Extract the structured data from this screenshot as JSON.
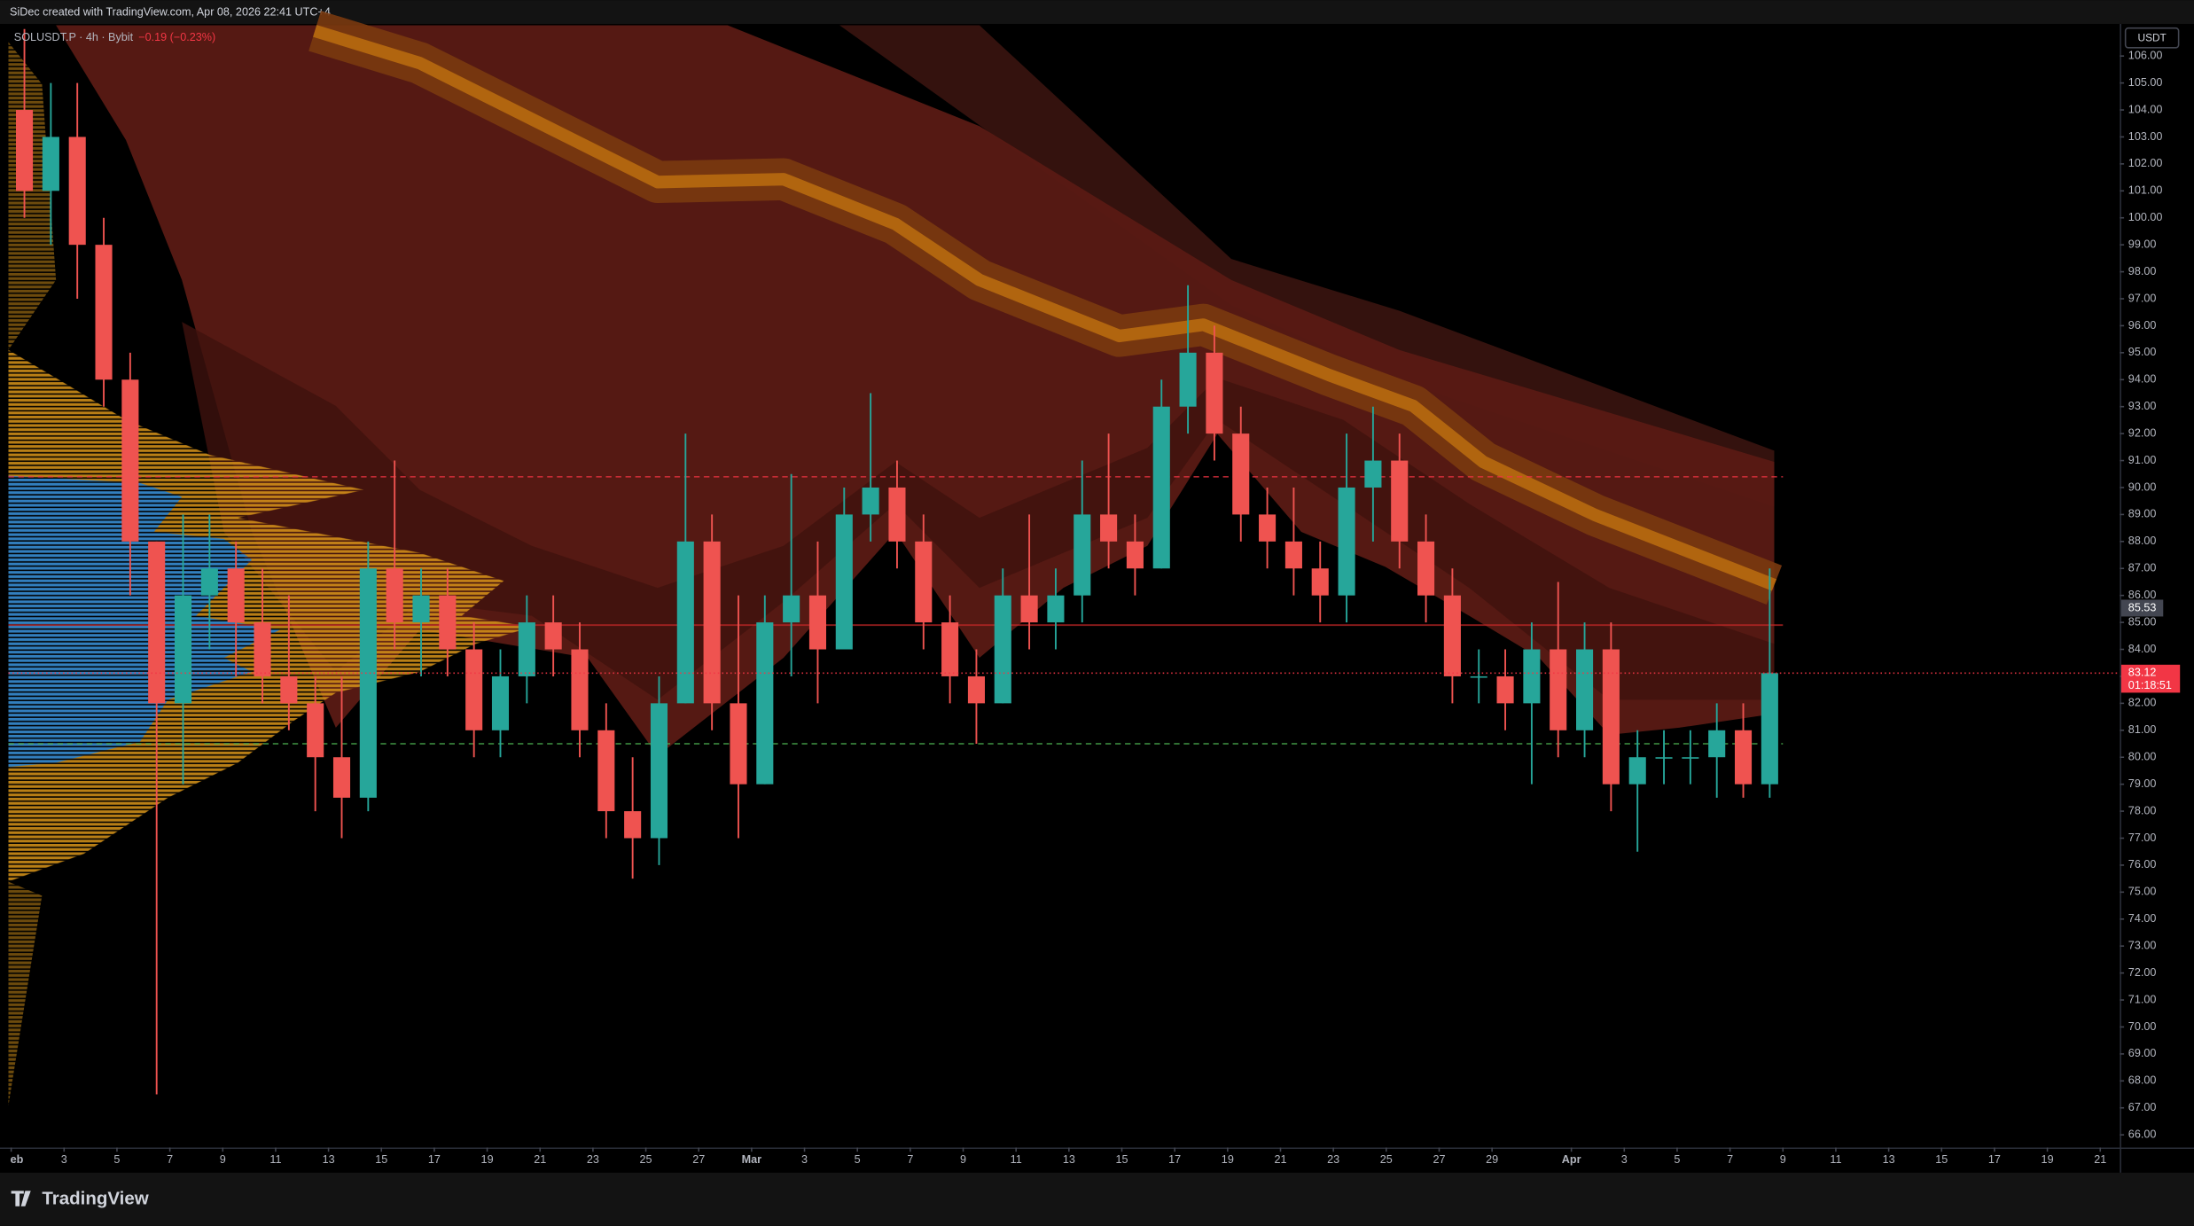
{
  "header": {
    "credit": "SiDec created with TradingView.com, Apr 08, 2026 22:41 UTC+4",
    "symbol": "SOLUSDT.P · 4h · Bybit",
    "change": "−0.19 (−0.23%)",
    "currency": "USDT",
    "brand": "TradingView"
  },
  "chart_data": {
    "type": "candlestick",
    "x": [
      "02-01",
      "02-02",
      "02-03",
      "02-04",
      "02-05",
      "02-06",
      "02-07",
      "02-08",
      "02-09",
      "02-10",
      "02-11",
      "02-12",
      "02-13",
      "02-14",
      "02-15",
      "02-16",
      "02-17",
      "02-18",
      "02-19",
      "02-20",
      "02-21",
      "02-22",
      "02-23",
      "02-24",
      "02-25",
      "02-26",
      "02-27",
      "02-28",
      "03-01",
      "03-02",
      "03-03",
      "03-04",
      "03-05",
      "03-06",
      "03-07",
      "03-08",
      "03-09",
      "03-10",
      "03-11",
      "03-12",
      "03-13",
      "03-14",
      "03-15",
      "03-16",
      "03-17",
      "03-18",
      "03-19",
      "03-20",
      "03-21",
      "03-22",
      "03-23",
      "03-24",
      "03-25",
      "03-26",
      "03-27",
      "03-28",
      "03-29",
      "03-30",
      "03-31",
      "04-01",
      "04-02",
      "04-03",
      "04-04",
      "04-05",
      "04-06",
      "04-07",
      "04-08"
    ],
    "open": [
      104,
      101,
      103,
      99,
      94,
      88,
      82,
      86,
      87,
      85,
      83,
      82,
      80,
      78.5,
      87,
      85,
      86,
      84,
      81,
      83,
      85,
      84,
      81,
      78,
      77,
      82,
      88,
      82,
      79,
      85,
      86,
      84,
      89,
      90,
      88,
      85,
      83,
      82,
      86,
      85,
      86,
      89,
      88,
      87,
      93,
      95,
      92,
      89,
      88,
      87,
      86,
      90,
      91,
      88,
      86,
      83,
      83,
      82,
      84,
      81,
      84,
      79,
      80,
      80,
      80,
      81,
      79
    ],
    "high": [
      107,
      105,
      105,
      100,
      95,
      88,
      89,
      89,
      88,
      87,
      86,
      83,
      83,
      88,
      91,
      87,
      87,
      85,
      84,
      86,
      86,
      85,
      82,
      80,
      83,
      92,
      89,
      86,
      86,
      90.5,
      88,
      90,
      93.5,
      91,
      89,
      86,
      84,
      87,
      89,
      87,
      91,
      92,
      89,
      94,
      97.5,
      96,
      93,
      90,
      90,
      88,
      92,
      93,
      92,
      89,
      87,
      84,
      84,
      85,
      86.5,
      85,
      85,
      81,
      81,
      81,
      82,
      82,
      87
    ],
    "low": [
      100,
      99,
      97,
      93,
      86,
      67.5,
      79,
      84,
      83,
      82,
      81,
      78,
      77,
      78,
      84,
      83,
      83,
      80,
      80,
      82,
      83,
      80,
      77,
      75.5,
      76,
      82,
      81,
      77,
      79,
      83,
      82,
      84,
      88,
      87,
      84,
      82,
      80.5,
      82,
      84,
      84,
      85,
      87,
      86,
      87,
      92,
      91,
      88,
      87,
      86,
      85,
      85,
      88,
      87,
      85,
      82,
      82,
      81,
      79,
      80,
      80,
      78,
      76.5,
      79,
      79,
      78.5,
      78.5,
      78.5
    ],
    "close": [
      101,
      103,
      99,
      94,
      88,
      82,
      86,
      87,
      85,
      83,
      82,
      80,
      78.5,
      87,
      85,
      86,
      84,
      81,
      83,
      85,
      84,
      81,
      78,
      77,
      82,
      88,
      82,
      79,
      85,
      86,
      84,
      89,
      90,
      88,
      85,
      83,
      82,
      86,
      85,
      86,
      89,
      88,
      87,
      93,
      95,
      92,
      89,
      88,
      87,
      86,
      90,
      91,
      88,
      86,
      83,
      83,
      82,
      84,
      81,
      84,
      79,
      80,
      80,
      80,
      81,
      79,
      83.12
    ],
    "up_color": "#26a69a",
    "down_color": "#ef5350",
    "xlim": [
      "02-01",
      "04-21"
    ],
    "xticks": [
      {
        "value": "02-01",
        "label": "eb"
      },
      {
        "value": "02-03",
        "label": "3"
      },
      {
        "value": "02-05",
        "label": "5"
      },
      {
        "value": "02-07",
        "label": "7"
      },
      {
        "value": "02-09",
        "label": "9"
      },
      {
        "value": "02-11",
        "label": "11"
      },
      {
        "value": "02-13",
        "label": "13"
      },
      {
        "value": "02-15",
        "label": "15"
      },
      {
        "value": "02-17",
        "label": "17"
      },
      {
        "value": "02-19",
        "label": "19"
      },
      {
        "value": "02-21",
        "label": "21"
      },
      {
        "value": "02-23",
        "label": "23"
      },
      {
        "value": "02-25",
        "label": "25"
      },
      {
        "value": "02-27",
        "label": "27"
      },
      {
        "value": "03-01",
        "label": "Mar"
      },
      {
        "value": "03-03",
        "label": "3"
      },
      {
        "value": "03-05",
        "label": "5"
      },
      {
        "value": "03-07",
        "label": "7"
      },
      {
        "value": "03-09",
        "label": "9"
      },
      {
        "value": "03-11",
        "label": "11"
      },
      {
        "value": "03-13",
        "label": "13"
      },
      {
        "value": "03-15",
        "label": "15"
      },
      {
        "value": "03-17",
        "label": "17"
      },
      {
        "value": "03-19",
        "label": "19"
      },
      {
        "value": "03-21",
        "label": "21"
      },
      {
        "value": "03-23",
        "label": "23"
      },
      {
        "value": "03-25",
        "label": "25"
      },
      {
        "value": "03-27",
        "label": "27"
      },
      {
        "value": "03-29",
        "label": "29"
      },
      {
        "value": "04-01",
        "label": "Apr"
      },
      {
        "value": "04-03",
        "label": "3"
      },
      {
        "value": "04-05",
        "label": "5"
      },
      {
        "value": "04-07",
        "label": "7"
      },
      {
        "value": "04-09",
        "label": "9"
      },
      {
        "value": "04-11",
        "label": "11"
      },
      {
        "value": "04-13",
        "label": "13"
      },
      {
        "value": "04-15",
        "label": "15"
      },
      {
        "value": "04-17",
        "label": "17"
      },
      {
        "value": "04-19",
        "label": "19"
      },
      {
        "value": "04-21",
        "label": "21"
      }
    ],
    "ylim": [
      65.53,
      107.19
    ],
    "yticks": [
      {
        "value": 106,
        "label": "106.00"
      },
      {
        "value": 105,
        "label": "105.00"
      },
      {
        "value": 104,
        "label": "104.00"
      },
      {
        "value": 103,
        "label": "103.00"
      },
      {
        "value": 102,
        "label": "102.00"
      },
      {
        "value": 101,
        "label": "101.00"
      },
      {
        "value": 100,
        "label": "100.00"
      },
      {
        "value": 99,
        "label": "99.00"
      },
      {
        "value": 98,
        "label": "98.00"
      },
      {
        "value": 97,
        "label": "97.00"
      },
      {
        "value": 96,
        "label": "96.00"
      },
      {
        "value": 95,
        "label": "95.00"
      },
      {
        "value": 94,
        "label": "94.00"
      },
      {
        "value": 93,
        "label": "93.00"
      },
      {
        "value": 92,
        "label": "92.00"
      },
      {
        "value": 91,
        "label": "91.00"
      },
      {
        "value": 90,
        "label": "90.00"
      },
      {
        "value": 89,
        "label": "89.00"
      },
      {
        "value": 88,
        "label": "88.00"
      },
      {
        "value": 87,
        "label": "87.00"
      },
      {
        "value": 86,
        "label": "86.00"
      },
      {
        "value": 85,
        "label": "85.00"
      },
      {
        "value": 84,
        "label": "84.00"
      },
      {
        "value": 83,
        "label": "83.00"
      },
      {
        "value": 82,
        "label": "82.00"
      },
      {
        "value": 81,
        "label": "81.00"
      },
      {
        "value": 80,
        "label": "80.00"
      },
      {
        "value": 79,
        "label": "79.00"
      },
      {
        "value": 78,
        "label": "78.00"
      },
      {
        "value": 77,
        "label": "77.00"
      },
      {
        "value": 76,
        "label": "76.00"
      },
      {
        "value": 75,
        "label": "75.00"
      },
      {
        "value": 74,
        "label": "74.00"
      },
      {
        "value": 73,
        "label": "73.00"
      },
      {
        "value": 72,
        "label": "72.00"
      },
      {
        "value": 71,
        "label": "71.00"
      },
      {
        "value": 70,
        "label": "70.00"
      },
      {
        "value": 69,
        "label": "69.00"
      },
      {
        "value": 68,
        "label": "68.00"
      },
      {
        "value": 67,
        "label": "67.00"
      },
      {
        "value": 66,
        "label": "66.00"
      }
    ],
    "levels": [
      {
        "value": 90.4,
        "color": "#f23645",
        "style": "dashed"
      },
      {
        "value": 84.9,
        "color": "#c62828",
        "style": "solid"
      },
      {
        "value": 80.5,
        "color": "#4caf50",
        "style": "dashed"
      }
    ],
    "price_tags": [
      {
        "value": 85.53,
        "color": "#434651"
      },
      {
        "value": 83.12,
        "color": "#f23645",
        "countdown": "01:18:51"
      }
    ]
  }
}
